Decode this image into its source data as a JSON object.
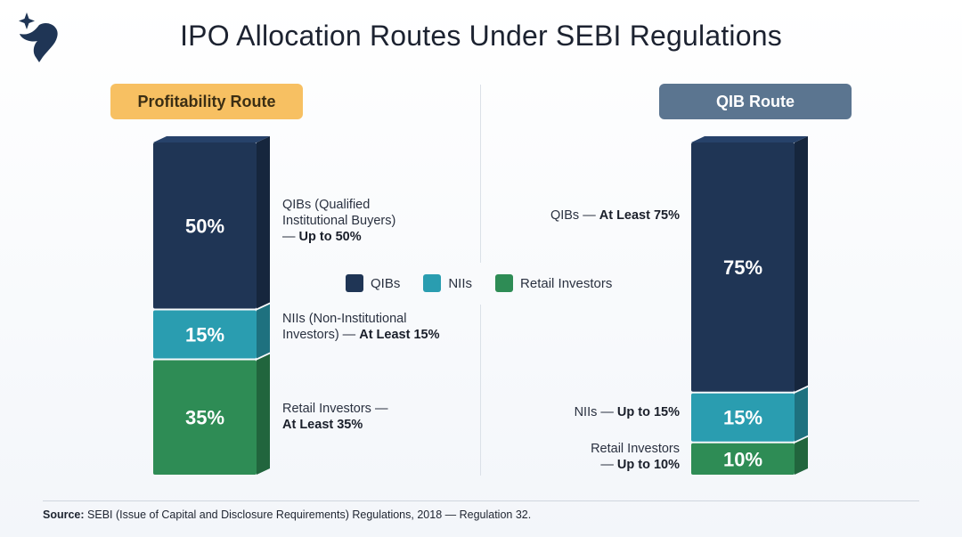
{
  "title": "IPO Allocation Routes Under SEBI Regulations",
  "colors": {
    "qib": "#1f3555",
    "nii": "#2a9db0",
    "retail": "#2e8c55",
    "pill_profit": "#f7c062",
    "pill_qib": "#5b7590"
  },
  "legend": [
    "QIBs",
    "NIIs",
    "Retail Investors"
  ],
  "chart_data": [
    {
      "type": "bar",
      "title": "Profitability Route",
      "stacked": true,
      "categories": [
        "Profitability Route"
      ],
      "series": [
        {
          "name": "QIBs",
          "values": [
            50
          ],
          "value_label": "50%"
        },
        {
          "name": "NIIs",
          "values": [
            15
          ],
          "value_label": "15%"
        },
        {
          "name": "Retail Investors",
          "values": [
            35
          ],
          "value_label": "35%"
        }
      ]
    },
    {
      "type": "bar",
      "title": "QIB Route",
      "stacked": true,
      "categories": [
        "QIB Route"
      ],
      "series": [
        {
          "name": "QIBs",
          "values": [
            75
          ],
          "value_label": "75%"
        },
        {
          "name": "NIIs",
          "values": [
            15
          ],
          "value_label": "15%"
        },
        {
          "name": "Retail Investors",
          "values": [
            10
          ],
          "value_label": "10%"
        }
      ]
    }
  ],
  "annotations": {
    "left": {
      "qib": {
        "line1": "QIBs (Qualified",
        "line2": "Institutional Buyers)",
        "prefix": "— ",
        "bold": "Up to 50%"
      },
      "nii": {
        "line1": "NIIs (Non-Institutional",
        "line2": "Investors) — ",
        "bold": "At Least 15%"
      },
      "retail": {
        "line1": "Retail Investors —",
        "bold": "At Least 35%"
      }
    },
    "right": {
      "qib": {
        "prefix": "QIBs — ",
        "bold": "At Least 75%"
      },
      "nii": {
        "prefix": "NIIs — ",
        "bold": "Up to 15%"
      },
      "retail": {
        "line1": "Retail Investors",
        "prefix": "— ",
        "bold": "Up to 10%"
      }
    }
  },
  "source": {
    "label": "Source:",
    "text": " SEBI (Issue of Capital and Disclosure Requirements) Regulations, 2018 — Regulation 32."
  }
}
